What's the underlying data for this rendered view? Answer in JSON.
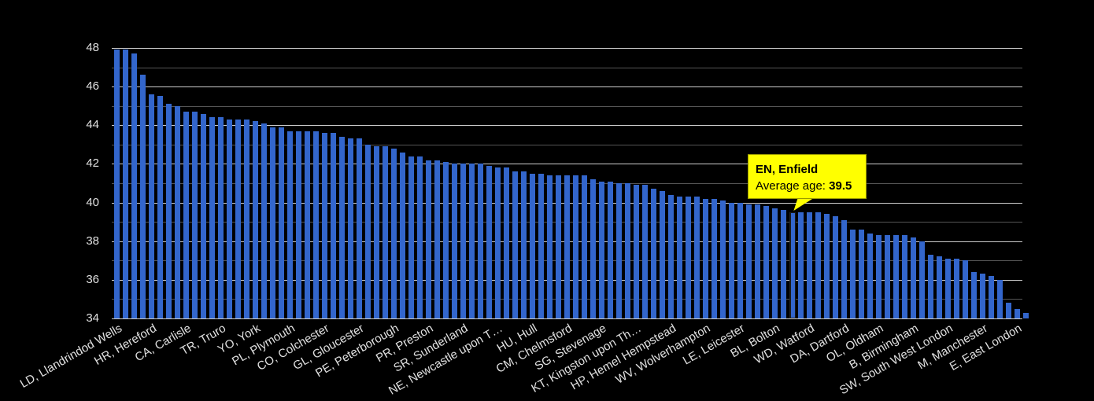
{
  "chart_data": {
    "type": "bar",
    "title": "",
    "xlabel": "",
    "ylabel": "Average age",
    "ylim": [
      34,
      48
    ],
    "yticks": [
      34,
      36,
      38,
      40,
      42,
      44,
      46,
      48
    ],
    "grid": true,
    "legend": "none",
    "bar_color": "#3366cc",
    "background": "#000000",
    "categories_labeled": [
      "LD, Llandrindod Wells",
      "HR, Hereford",
      "CA, Carlisle",
      "TR, Truro",
      "YO, York",
      "PL, Plymouth",
      "CO, Colchester",
      "GL, Gloucester",
      "PE, Peterborough",
      "PR, Preston",
      "SR, Sunderland",
      "NE, Newcastle upon T…",
      "HU, Hull",
      "CM, Chelmsford",
      "SG, Stevenage",
      "KT, Kingston upon Th…",
      "HP, Hemel Hempstead",
      "WV, Wolverhampton",
      "LE, Leicester",
      "BL, Bolton",
      "WD, Watford",
      "DA, Dartford",
      "OL, Oldham",
      "B, Birmingham",
      "SW, South West London",
      "M, Manchester",
      "E, East London"
    ],
    "label_every": 4,
    "values": [
      47.9,
      47.9,
      47.7,
      46.6,
      45.6,
      45.5,
      45.1,
      45.0,
      44.7,
      44.7,
      44.6,
      44.4,
      44.4,
      44.3,
      44.3,
      44.3,
      44.2,
      44.1,
      43.9,
      43.9,
      43.7,
      43.7,
      43.7,
      43.7,
      43.6,
      43.6,
      43.4,
      43.3,
      43.3,
      43.0,
      42.9,
      42.9,
      42.8,
      42.6,
      42.4,
      42.4,
      42.2,
      42.2,
      42.1,
      42.0,
      42.0,
      42.0,
      42.0,
      41.9,
      41.8,
      41.8,
      41.6,
      41.6,
      41.5,
      41.5,
      41.4,
      41.4,
      41.4,
      41.4,
      41.4,
      41.2,
      41.1,
      41.1,
      41.0,
      41.0,
      40.9,
      40.9,
      40.7,
      40.6,
      40.4,
      40.3,
      40.3,
      40.3,
      40.2,
      40.2,
      40.1,
      40.0,
      40.0,
      39.9,
      39.9,
      39.8,
      39.7,
      39.6,
      39.5,
      39.5,
      39.5,
      39.5,
      39.4,
      39.3,
      39.1,
      38.6,
      38.6,
      38.4,
      38.3,
      38.3,
      38.3,
      38.3,
      38.2,
      38.0,
      37.3,
      37.2,
      37.1,
      37.1,
      37.0,
      36.4,
      36.3,
      36.2,
      36.0,
      34.8,
      34.5,
      34.3
    ],
    "highlight": {
      "index": 78,
      "label": "EN, Enfield",
      "value": 39.5
    }
  },
  "tooltip": {
    "title": "EN, Enfield",
    "label": "Average age: ",
    "value": "39.5"
  }
}
